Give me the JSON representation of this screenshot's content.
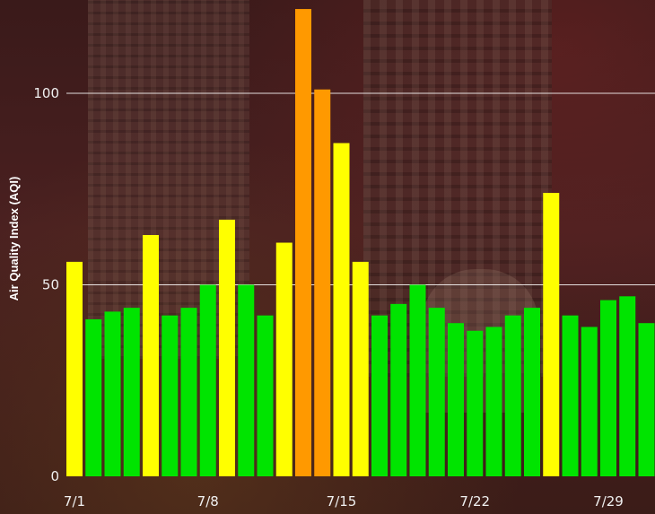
{
  "chart_data": {
    "type": "bar",
    "title": "",
    "xlabel": "",
    "ylabel": "Air Quality Index (AQI)",
    "ylim": [
      0,
      125
    ],
    "yticks": [
      0,
      50,
      100
    ],
    "grid": true,
    "xtick_labels": [
      {
        "label": "7/1",
        "index": 0
      },
      {
        "label": "7/8",
        "index": 7
      },
      {
        "label": "7/15",
        "index": 14
      },
      {
        "label": "7/22",
        "index": 21
      },
      {
        "label": "7/29",
        "index": 28
      }
    ],
    "categories": [
      "7/1",
      "7/2",
      "7/3",
      "7/4",
      "7/5",
      "7/6",
      "7/7",
      "7/8",
      "7/9",
      "7/10",
      "7/11",
      "7/12",
      "7/13",
      "7/14",
      "7/15",
      "7/16",
      "7/17",
      "7/18",
      "7/19",
      "7/20",
      "7/21",
      "7/22",
      "7/23",
      "7/24",
      "7/25",
      "7/26",
      "7/27",
      "7/28",
      "7/29",
      "7/30",
      "7/31",
      "8/1"
    ],
    "values": [
      56,
      41,
      43,
      44,
      63,
      42,
      44,
      50,
      67,
      50,
      42,
      61,
      122,
      101,
      87,
      56,
      42,
      45,
      50,
      44,
      40,
      38,
      39,
      42,
      44,
      74,
      42,
      39,
      46,
      47,
      40,
      0
    ],
    "colors": {
      "good": "#00e400",
      "moderate": "#ffff00",
      "usg": "#ff9900",
      "gridline": "#ffffff"
    }
  }
}
